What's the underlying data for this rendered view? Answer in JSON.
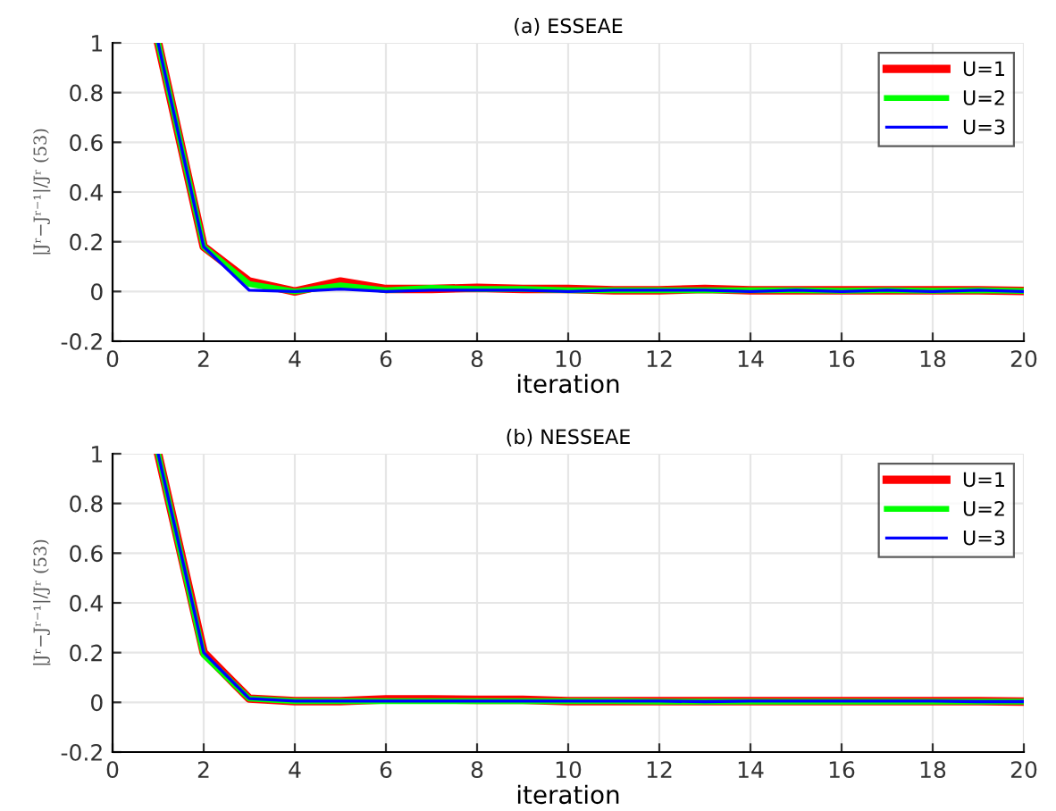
{
  "chart_data": [
    {
      "type": "line",
      "title": "(a) ESSEAE",
      "xlabel": "iteration",
      "ylabel": "|Jʳ−Jʳ⁻¹|/Jʳ (53)",
      "x": [
        1,
        2,
        3,
        4,
        5,
        6,
        7,
        8,
        9,
        10,
        11,
        12,
        13,
        14,
        15,
        16,
        17,
        18,
        19,
        20
      ],
      "series": [
        {
          "name": "U=1",
          "color": "#ff0000",
          "values": [
            1,
            0.18,
            0.04,
            0.0,
            0.04,
            0.01,
            0.01,
            0.015,
            0.01,
            0.01,
            0.005,
            0.005,
            0.01,
            0.005,
            0.005,
            0.005,
            0.005,
            0.005,
            0.005,
            0.002
          ]
        },
        {
          "name": "U=2",
          "color": "#00ff00",
          "values": [
            1,
            0.18,
            0.03,
            0.0,
            0.025,
            0.005,
            0.015,
            0.01,
            0.01,
            0.005,
            0.005,
            0.005,
            0.005,
            0.005,
            0.005,
            0.003,
            0.005,
            0.003,
            0.005,
            0.002
          ]
        },
        {
          "name": "U=3",
          "color": "#0000ff",
          "values": [
            1,
            0.18,
            0.005,
            0.0,
            0.01,
            0.0,
            0.005,
            0.005,
            0.005,
            0.0,
            0.005,
            0.005,
            0.005,
            0.0,
            0.005,
            0.0,
            0.005,
            0.0,
            0.005,
            0.0
          ]
        }
      ],
      "xlim": [
        0,
        20
      ],
      "xticks": [
        0,
        2,
        4,
        6,
        8,
        10,
        12,
        14,
        16,
        18,
        20
      ],
      "ylim": [
        -0.2,
        1
      ],
      "yticks": [
        -0.2,
        0,
        0.2,
        0.4,
        0.6,
        0.8,
        1
      ],
      "grid": true,
      "legend": "top right"
    },
    {
      "type": "line",
      "title": "(b) NESSEAE",
      "xlabel": "iteration",
      "ylabel": "|Jʳ−Jʳ⁻¹|/Jʳ (53)",
      "x": [
        1,
        2,
        3,
        4,
        5,
        6,
        7,
        8,
        9,
        10,
        11,
        12,
        13,
        14,
        15,
        16,
        17,
        18,
        19,
        20
      ],
      "series": [
        {
          "name": "U=1",
          "color": "#ff0000",
          "values": [
            1,
            0.2,
            0.015,
            0.005,
            0.005,
            0.012,
            0.012,
            0.01,
            0.01,
            0.005,
            0.005,
            0.005,
            0.005,
            0.005,
            0.005,
            0.005,
            0.005,
            0.005,
            0.005,
            0.003
          ]
        },
        {
          "name": "U=2",
          "color": "#00ff00",
          "values": [
            1,
            0.19,
            0.015,
            0.005,
            0.005,
            0.005,
            0.005,
            0.005,
            0.005,
            0.005,
            0.005,
            0.003,
            0.003,
            0.003,
            0.003,
            0.003,
            0.003,
            0.003,
            0.003,
            0.003
          ]
        },
        {
          "name": "U=3",
          "color": "#0000ff",
          "values": [
            1,
            0.2,
            0.015,
            0.005,
            0.005,
            0.005,
            0.005,
            0.005,
            0.005,
            0.005,
            0.005,
            0.005,
            0.003,
            0.005,
            0.005,
            0.005,
            0.005,
            0.005,
            0.003,
            0.003
          ]
        }
      ],
      "xlim": [
        0,
        20
      ],
      "xticks": [
        0,
        2,
        4,
        6,
        8,
        10,
        12,
        14,
        16,
        18,
        20
      ],
      "ylim": [
        -0.2,
        1
      ],
      "yticks": [
        -0.2,
        0,
        0.2,
        0.4,
        0.6,
        0.8,
        1
      ],
      "grid": true,
      "legend": "top right"
    }
  ]
}
